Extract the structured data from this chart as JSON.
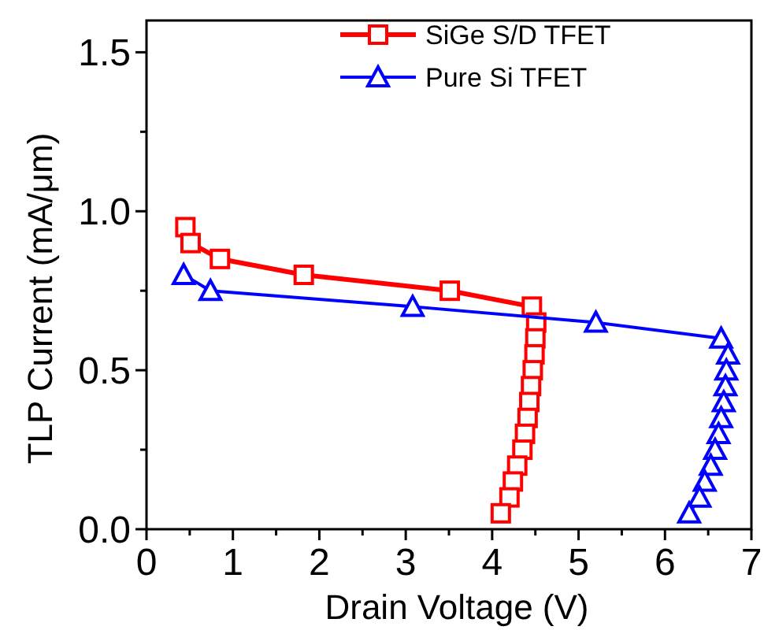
{
  "chart_data": {
    "type": "line",
    "xlabel": "Drain Voltage (V)",
    "ylabel": "TLP Current (mA/μm)",
    "xlim": [
      0,
      7
    ],
    "ylim": [
      0,
      1.6
    ],
    "xticks": [
      0,
      {
        "value": 0.5,
        "label": null
      },
      1,
      {
        "value": 1.5,
        "label": null
      },
      2,
      {
        "value": 2.5,
        "label": null
      },
      3,
      {
        "value": 3.5,
        "label": null
      },
      4,
      {
        "value": 4.5,
        "label": null
      },
      5,
      {
        "value": 5.5,
        "label": null
      },
      6,
      {
        "value": 6.5,
        "label": null
      },
      7
    ],
    "yticks": [
      {
        "value": 0,
        "label": "0.0"
      },
      {
        "value": 0.25,
        "label": null
      },
      {
        "value": 0.5,
        "label": "0.5"
      },
      {
        "value": 0.75,
        "label": null
      },
      {
        "value": 1,
        "label": "1.0"
      },
      {
        "value": 1.25,
        "label": null
      },
      {
        "value": 1.5,
        "label": "1.5"
      }
    ],
    "grid": false,
    "legend": "top right",
    "line_style": "solid",
    "series": [
      {
        "name": "SiGe S/D TFET",
        "color": "#ff0000",
        "marker": "square",
        "x": [
          0.45,
          0.51,
          0.85,
          1.82,
          3.51,
          4.46,
          4.51,
          4.5,
          4.49,
          4.47,
          4.45,
          4.43,
          4.41,
          4.38,
          4.35,
          4.29,
          4.24,
          4.2,
          4.1
        ],
        "values": [
          0.95,
          0.9,
          0.85,
          0.8,
          0.75,
          0.7,
          0.65,
          0.6,
          0.55,
          0.5,
          0.45,
          0.4,
          0.35,
          0.3,
          0.25,
          0.2,
          0.15,
          0.1,
          0.05
        ]
      },
      {
        "name": "Pure Si TFET",
        "color": "#0000ff",
        "marker": "triangle",
        "x": [
          0.43,
          0.74,
          3.08,
          5.2,
          6.65,
          6.73,
          6.71,
          6.7,
          6.68,
          6.65,
          6.62,
          6.58,
          6.53,
          6.46,
          6.4,
          6.28
        ],
        "values": [
          0.8,
          0.75,
          0.7,
          0.65,
          0.6,
          0.55,
          0.5,
          0.45,
          0.4,
          0.35,
          0.3,
          0.25,
          0.2,
          0.15,
          0.1,
          0.05
        ]
      }
    ]
  }
}
